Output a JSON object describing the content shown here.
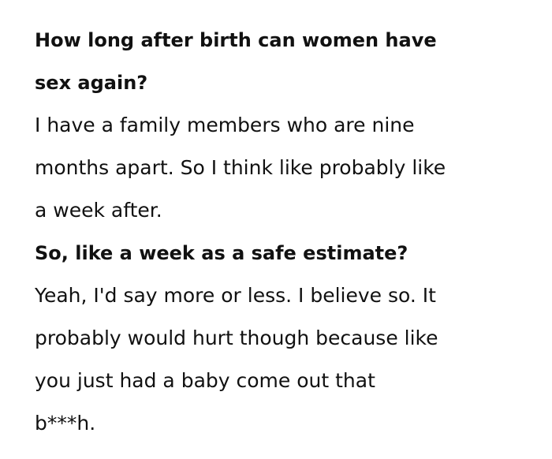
{
  "qa": [
    {
      "question_lines": [
        "How long after birth can women have",
        "sex again?"
      ],
      "answer_lines": [
        "I have a family members who are nine",
        "months apart. So I think like probably like",
        "a week after."
      ]
    },
    {
      "question_lines": [
        "So, like a week as a safe estimate?"
      ],
      "answer_lines": [
        "Yeah, I'd say more or less. I believe so. It",
        "probably would hurt though because like",
        "you just had a baby come out that",
        "b***h."
      ]
    }
  ]
}
